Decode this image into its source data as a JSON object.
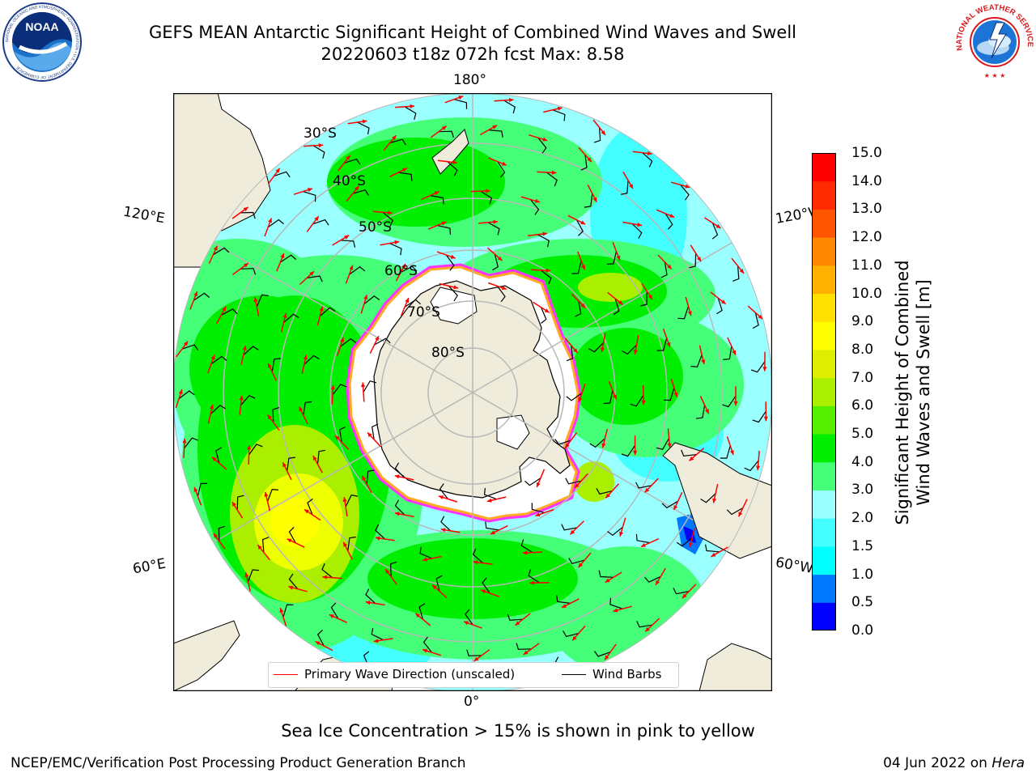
{
  "header": {
    "title_line1": "GEFS MEAN Antarctic Significant Height of Combined Wind Waves and Swell",
    "title_line2": "20220603 t18z 072h fcst   Max: 8.58"
  },
  "logos": {
    "left": {
      "text": "NOAA",
      "icon": "noaa-logo",
      "ring_text": "NATIONAL OCEANIC AND ATMOSPHERIC ADMINISTRATION • U.S. DEPARTMENT OF COMMERCE"
    },
    "right": {
      "icon": "nws-logo",
      "ring_text": "NATIONAL WEATHER SERVICE"
    }
  },
  "map": {
    "projection": "south-polar-stereographic",
    "lon_labels": {
      "top": "180°",
      "bottom": "0°",
      "left_upper": "120°E",
      "left_lower": "60°E",
      "right_upper": "120°W",
      "right_lower": "60°W"
    },
    "lat_labels": [
      "30°S",
      "40°S",
      "50°S",
      "60°S",
      "70°S",
      "80°S"
    ],
    "colors": {
      "land": "#efecdc",
      "ice": "#ffffff",
      "ice_edge": [
        "#ff33ff",
        "#ffaa22",
        "#ffff33"
      ],
      "grid": "#b8b8b8",
      "wave_arrow": "#ff0000",
      "wind_barb": "#000000"
    }
  },
  "colorbar": {
    "title_line1": "Significant Height of Combined",
    "title_line2": "Wind Waves and Swell [m]",
    "tick_labels": [
      "0.0",
      "0.5",
      "1.0",
      "1.5",
      "2.0",
      "3.0",
      "4.0",
      "5.0",
      "6.0",
      "7.0",
      "8.0",
      "9.0",
      "10.0",
      "11.0",
      "12.0",
      "13.0",
      "14.0",
      "15.0"
    ],
    "colors": [
      "#0000ff",
      "#0077ff",
      "#00ffff",
      "#44ffff",
      "#99ffff",
      "#44ff77",
      "#00ee00",
      "#55ee00",
      "#aaee00",
      "#ddee00",
      "#ffff00",
      "#ffe000",
      "#ffb000",
      "#ff8800",
      "#ff5500",
      "#ff2a00",
      "#ff0000"
    ]
  },
  "legend": {
    "entries": [
      {
        "label": "Primary Wave Direction (unscaled)",
        "color": "#ff0000"
      },
      {
        "label": "Wind Barbs",
        "color": "#000000"
      }
    ]
  },
  "caption": "Sea Ice Concentration > 15% is shown in pink to yellow",
  "footer": {
    "left": "NCEP/EMC/Verification Post Processing Product Generation Branch",
    "right_date": "04 Jun 2022 on ",
    "right_host": "Hera"
  }
}
